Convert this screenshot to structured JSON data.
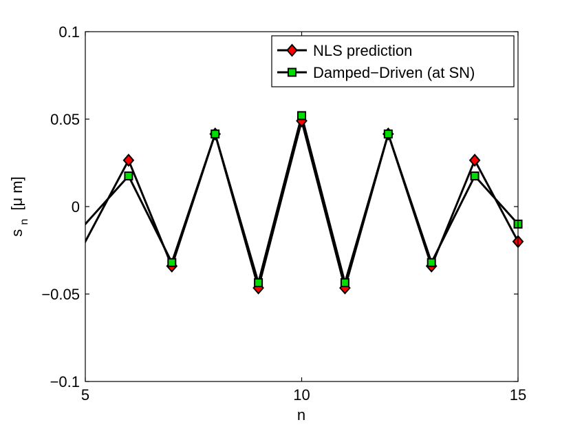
{
  "chart_data": {
    "type": "line",
    "title": "",
    "xlabel": "n",
    "ylabel": "s_n [μ m]",
    "ylabel_main": "s",
    "ylabel_sub": "n",
    "ylabel_unit": "[μ m]",
    "xlim": [
      5,
      15
    ],
    "ylim": [
      -0.1,
      0.1
    ],
    "xticks": [
      5,
      10,
      15
    ],
    "xtick_labels": [
      "5",
      "10",
      "15"
    ],
    "yticks": [
      -0.1,
      -0.05,
      0,
      0.05,
      0.1
    ],
    "ytick_labels": [
      "−0.1",
      "−0.05",
      "0",
      "0.05",
      "0.1"
    ],
    "grid": false,
    "legend_position": "top-right",
    "series": [
      {
        "name": "NLS prediction",
        "marker": "diamond",
        "marker_color": "#ff0000",
        "line_color": "#000000",
        "x": [
          4,
          5,
          6,
          7,
          8,
          9,
          10,
          11,
          12,
          13,
          14,
          15
        ],
        "y": [
          0.0165,
          -0.02,
          0.0265,
          -0.034,
          0.0415,
          -0.0465,
          0.049,
          -0.0465,
          0.0415,
          -0.034,
          0.0265,
          -0.02
        ],
        "marker_from_index": 2
      },
      {
        "name": "Damped−Driven (at SN)",
        "marker": "square",
        "marker_color": "#00dd00",
        "line_color": "#000000",
        "x": [
          4,
          5,
          6,
          7,
          8,
          9,
          10,
          11,
          12,
          13,
          14,
          15
        ],
        "y": [
          0.0205,
          -0.01,
          0.0175,
          -0.032,
          0.0415,
          -0.0435,
          0.052,
          -0.0435,
          0.0415,
          -0.032,
          0.0175,
          -0.01
        ],
        "marker_from_index": 2
      }
    ]
  }
}
